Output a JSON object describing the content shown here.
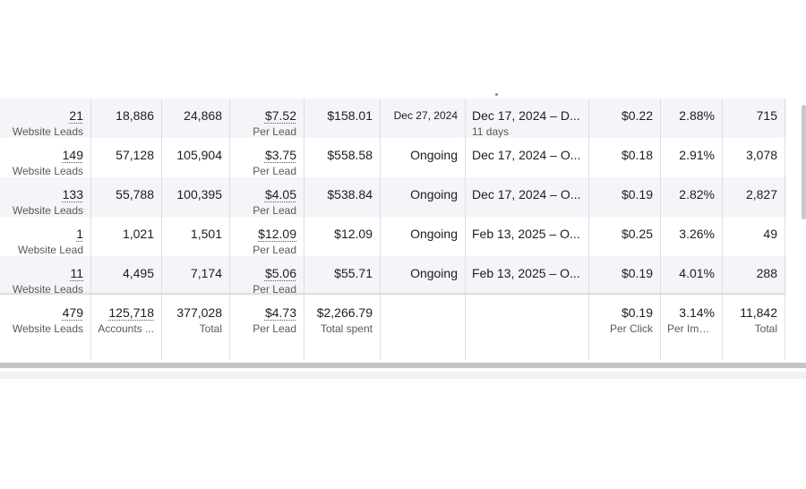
{
  "rows": [
    {
      "results": "21",
      "results_label": "Website Leads",
      "reach": "18,886",
      "impressions": "24,868",
      "cost_per_result": "$7.52",
      "cost_per_result_label": "Per Lead",
      "amount_spent": "$158.01",
      "ends": "Dec 27, 2024",
      "schedule": "Dec 17, 2024 – D...",
      "schedule_sub": "11 days",
      "cpc": "$0.22",
      "ctr": "2.88%",
      "clicks": "715"
    },
    {
      "results": "149",
      "results_label": "Website Leads",
      "reach": "57,128",
      "impressions": "105,904",
      "cost_per_result": "$3.75",
      "cost_per_result_label": "Per Lead",
      "amount_spent": "$558.58",
      "ends": "Ongoing",
      "schedule": "Dec 17, 2024 – O...",
      "schedule_sub": "",
      "cpc": "$0.18",
      "ctr": "2.91%",
      "clicks": "3,078"
    },
    {
      "results": "133",
      "results_label": "Website Leads",
      "reach": "55,788",
      "impressions": "100,395",
      "cost_per_result": "$4.05",
      "cost_per_result_label": "Per Lead",
      "amount_spent": "$538.84",
      "ends": "Ongoing",
      "schedule": "Dec 17, 2024 – O...",
      "schedule_sub": "",
      "cpc": "$0.19",
      "ctr": "2.82%",
      "clicks": "2,827"
    },
    {
      "results": "1",
      "results_label": "Website Lead",
      "reach": "1,021",
      "impressions": "1,501",
      "cost_per_result": "$12.09",
      "cost_per_result_label": "Per Lead",
      "amount_spent": "$12.09",
      "ends": "Ongoing",
      "schedule": "Feb 13, 2025 – O...",
      "schedule_sub": "",
      "cpc": "$0.25",
      "ctr": "3.26%",
      "clicks": "49"
    },
    {
      "results": "11",
      "results_label": "Website Leads",
      "reach": "4,495",
      "impressions": "7,174",
      "cost_per_result": "$5.06",
      "cost_per_result_label": "Per Lead",
      "amount_spent": "$55.71",
      "ends": "Ongoing",
      "schedule": "Feb 13, 2025 – O...",
      "schedule_sub": "",
      "cpc": "$0.19",
      "ctr": "4.01%",
      "clicks": "288"
    }
  ],
  "totals": {
    "results": "479",
    "results_label": "Website Leads",
    "reach": "125,718",
    "reach_label": "Accounts ...",
    "impressions": "377,028",
    "impressions_label": "Total",
    "cost_per_result": "$4.73",
    "cost_per_result_label": "Per Lead",
    "amount_spent": "$2,266.79",
    "amount_spent_label": "Total spent",
    "cpc": "$0.19",
    "cpc_label": "Per Click",
    "ctr": "3.14%",
    "ctr_label": "Per Impr...",
    "clicks": "11,842",
    "clicks_label": "Total"
  }
}
